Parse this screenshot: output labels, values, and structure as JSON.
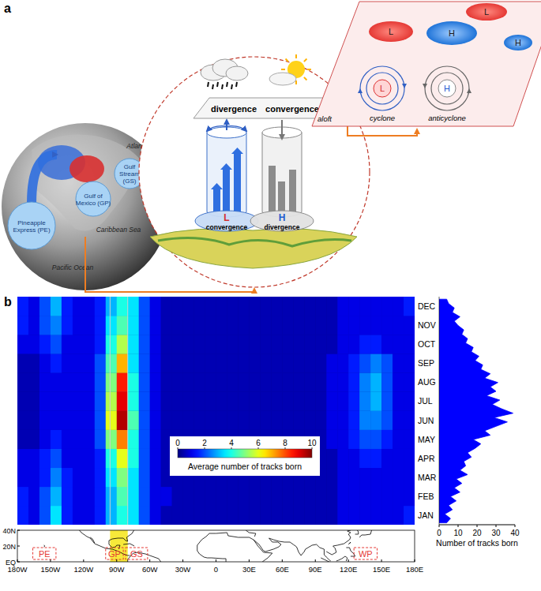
{
  "panel_labels": [
    "a",
    "b"
  ],
  "diagram": {
    "globe": {
      "bubbles": [
        {
          "lines": [
            "Pineapple",
            "Express (PE)"
          ]
        },
        {
          "lines": [
            "Gulf of",
            "Mexico (GP)"
          ]
        },
        {
          "lines": [
            "Gulf",
            "Stream",
            "(GS)"
          ]
        }
      ],
      "oceans": [
        "Atlantic Ocean",
        "Pacific Ocean",
        "Caribbean Sea"
      ]
    },
    "column": {
      "upper": [
        "divergence",
        "convergence"
      ],
      "surface": [
        {
          "symbol": "L",
          "text": "convergence"
        },
        {
          "symbol": "H",
          "text": "divergence"
        }
      ]
    },
    "aloft": {
      "label": "aloft",
      "pressure_cells": [
        "L",
        "H",
        "L",
        "H"
      ],
      "systems": [
        {
          "symbol": "L",
          "text": "cyclone"
        },
        {
          "symbol": "H",
          "text": "anticyclone"
        }
      ]
    }
  },
  "chart_data": [
    {
      "type": "heatmap",
      "tick_labels": "y",
      "categories": [
        "JAN",
        "FEB",
        "MAR",
        "APR",
        "MAY",
        "JUN",
        "JUL",
        "AUG",
        "SEP",
        "OCT",
        "NOV",
        "DEC"
      ],
      "x_bins": [
        -180,
        -170,
        -160,
        -150,
        -140,
        -130,
        -120,
        -110,
        -100,
        -90,
        -80,
        -70,
        -60,
        -50,
        -40,
        -30,
        -20,
        -10,
        0,
        10,
        20,
        30,
        40,
        50,
        60,
        70,
        80,
        90,
        100,
        110,
        120,
        130,
        140,
        150,
        160,
        170,
        180
      ],
      "xlim": [
        -180,
        180
      ],
      "cells": [
        [
          1.5,
          1,
          2,
          3.5,
          1.5,
          1,
          1,
          1.5,
          3,
          4,
          3.5,
          2,
          1,
          0.5,
          0.5,
          0.5,
          0.5,
          0.5,
          0.5,
          0.5,
          0.5,
          0.5,
          0.5,
          0.5,
          0.5,
          0.5,
          0.5,
          0.5,
          0.5,
          1,
          1,
          1,
          1,
          1,
          1,
          1.5
        ],
        [
          1.5,
          1,
          2,
          3,
          1.5,
          1,
          1,
          1.5,
          3,
          4.5,
          3.5,
          2,
          1,
          1,
          0.5,
          0.5,
          0.5,
          0.5,
          0.5,
          0.5,
          0.5,
          0.5,
          0.5,
          0.5,
          0.5,
          0.5,
          0.5,
          0.5,
          0.5,
          1,
          1,
          1,
          1,
          1,
          1,
          1
        ],
        [
          1,
          1,
          1.5,
          2.5,
          1.5,
          1,
          1,
          1.5,
          3.5,
          5,
          3.5,
          2,
          1,
          0.5,
          0.5,
          0.5,
          0.5,
          0.5,
          0.5,
          0.5,
          0.5,
          0.5,
          0.5,
          0.5,
          0.5,
          0.5,
          0.5,
          0.5,
          0.5,
          1,
          1,
          1,
          1,
          1,
          1,
          1
        ],
        [
          1,
          1,
          1.5,
          2,
          1,
          1,
          1,
          1.5,
          4,
          6,
          4,
          2,
          1,
          0.5,
          0.5,
          0.5,
          0.5,
          0.5,
          0.5,
          0.5,
          0.5,
          0.5,
          0.5,
          0.5,
          0.5,
          0.5,
          0.5,
          0.5,
          0.5,
          1,
          1,
          1.5,
          1.5,
          1,
          1,
          1
        ],
        [
          0.5,
          0.5,
          1,
          1.5,
          1,
          1,
          1,
          2,
          5,
          7.5,
          4,
          2,
          1,
          0.5,
          0.5,
          0.5,
          0.5,
          0.5,
          0.5,
          0.5,
          0.5,
          0.5,
          0.5,
          0.5,
          0.5,
          0.5,
          0.5,
          0.5,
          1,
          1,
          1.5,
          2,
          2,
          1.5,
          1,
          1
        ],
        [
          0.5,
          0.5,
          1,
          1,
          1,
          1,
          1,
          2,
          6,
          9.5,
          4.5,
          2,
          1,
          0.5,
          0.5,
          0.5,
          0.5,
          0.5,
          0.5,
          0.5,
          0.5,
          0.5,
          0.5,
          0.5,
          0.5,
          0.5,
          0.5,
          0.5,
          1,
          1,
          1.5,
          2.5,
          2.5,
          2,
          1,
          1
        ],
        [
          0.5,
          0.5,
          1,
          1,
          1,
          1,
          1,
          2,
          5.5,
          9,
          4,
          2,
          1,
          0.5,
          0.5,
          0.5,
          0.5,
          0.5,
          0.5,
          0.5,
          0.5,
          0.5,
          0.5,
          0.5,
          0.5,
          0.5,
          0.5,
          0.5,
          1,
          1,
          1.5,
          2.5,
          3,
          2,
          1,
          1
        ],
        [
          0.5,
          0.5,
          1,
          1,
          1,
          1,
          1,
          2,
          5,
          8.5,
          4,
          2,
          1,
          0.5,
          0.5,
          0.5,
          0.5,
          0.5,
          0.5,
          0.5,
          0.5,
          0.5,
          0.5,
          0.5,
          0.5,
          0.5,
          0.5,
          0.5,
          1,
          1,
          1.5,
          2.5,
          3,
          2,
          1,
          1
        ],
        [
          0.5,
          0.5,
          1,
          1.5,
          1,
          1,
          1,
          2,
          4.5,
          7,
          3.5,
          2,
          1,
          0.5,
          0.5,
          0.5,
          0.5,
          0.5,
          0.5,
          0.5,
          0.5,
          0.5,
          0.5,
          0.5,
          0.5,
          0.5,
          0.5,
          0.5,
          1,
          1,
          1.5,
          2,
          2.5,
          2,
          1,
          1
        ],
        [
          1,
          1,
          1.5,
          2,
          1,
          1,
          1,
          1.5,
          4,
          5.5,
          3.5,
          2,
          1,
          0.5,
          0.5,
          0.5,
          0.5,
          0.5,
          0.5,
          0.5,
          0.5,
          0.5,
          0.5,
          0.5,
          0.5,
          0.5,
          0.5,
          0.5,
          0.5,
          1,
          1,
          1.5,
          1.5,
          1,
          1,
          1
        ],
        [
          1.5,
          1,
          2,
          2.5,
          1.5,
          1,
          1,
          1.5,
          3.5,
          4.5,
          3.5,
          2,
          1,
          0.5,
          0.5,
          0.5,
          0.5,
          0.5,
          0.5,
          0.5,
          0.5,
          0.5,
          0.5,
          0.5,
          0.5,
          0.5,
          0.5,
          0.5,
          0.5,
          1,
          1,
          1,
          1,
          1,
          1,
          1
        ],
        [
          1.5,
          1,
          2,
          3,
          1.5,
          1,
          1,
          1.5,
          3,
          4,
          3.5,
          2,
          1,
          0.5,
          0.5,
          0.5,
          0.5,
          0.5,
          0.5,
          0.5,
          0.5,
          0.5,
          0.5,
          0.5,
          0.5,
          0.5,
          0.5,
          0.5,
          0.5,
          1,
          1,
          1,
          1,
          1,
          1,
          1.5
        ]
      ],
      "colorbar": {
        "range": [
          0,
          10
        ],
        "ticks": [
          0,
          2,
          4,
          6,
          8,
          10
        ],
        "label": "Average number of tracks born"
      }
    },
    {
      "type": "area",
      "orientation": "horizontal",
      "color": "#0000ff",
      "x": [
        4,
        11,
        18,
        25,
        32,
        39,
        46,
        53,
        60,
        67,
        74,
        81,
        88,
        95,
        102,
        109,
        116,
        123,
        130,
        137,
        144,
        151,
        158,
        165,
        172,
        179,
        186,
        193,
        200,
        207,
        214,
        221,
        228,
        235,
        242,
        249,
        256,
        263,
        270,
        277,
        284,
        291,
        298,
        305,
        312,
        319,
        326,
        333,
        340,
        347,
        354,
        361
      ],
      "xlim": [
        1,
        365
      ],
      "values": [
        4,
        6,
        3,
        7,
        5,
        9,
        6,
        11,
        8,
        12,
        9,
        15,
        11,
        14,
        13,
        17,
        15,
        19,
        22,
        18,
        27,
        24,
        30,
        36,
        29,
        39,
        33,
        28,
        32,
        25,
        30,
        27,
        31,
        24,
        27,
        22,
        23,
        19,
        21,
        17,
        18,
        14,
        15,
        12,
        13,
        10,
        8,
        11,
        7,
        8,
        5,
        4
      ],
      "ylim": [
        0,
        40
      ],
      "yticks": [
        0,
        10,
        20,
        30,
        40
      ],
      "y_label": "Number of tracks born"
    },
    {
      "type": "map",
      "xlim": [
        -180,
        180
      ],
      "xticks": [
        {
          "value": -180,
          "label": "180W"
        },
        {
          "value": -150,
          "label": "150W"
        },
        {
          "value": -120,
          "label": "120W"
        },
        {
          "value": -90,
          "label": "90W"
        },
        {
          "value": -60,
          "label": "60W"
        },
        {
          "value": -30,
          "label": "30W"
        },
        0,
        {
          "value": 30,
          "label": "30E"
        },
        {
          "value": 60,
          "label": "60E"
        },
        {
          "value": 90,
          "label": "90E"
        },
        {
          "value": 120,
          "label": "120E"
        },
        {
          "value": 150,
          "label": "150E"
        },
        {
          "value": 180,
          "label": "180E"
        }
      ],
      "ylim": [
        0,
        40
      ],
      "yticks": [
        {
          "value": 0,
          "label": "EQ"
        },
        {
          "value": 20,
          "label": "20N"
        },
        {
          "value": 40,
          "label": "40N"
        }
      ],
      "highlight_lon": [
        -96,
        -80
      ],
      "regions": [
        {
          "label": "PE",
          "lon": [
            -166,
            -145
          ],
          "lat": [
            3,
            18
          ]
        },
        {
          "label": "GP",
          "lon": [
            -100,
            -84
          ],
          "lat": [
            3,
            18
          ]
        },
        {
          "label": "GS",
          "lon": [
            -82,
            -62
          ],
          "lat": [
            3,
            18
          ]
        },
        {
          "label": "WP",
          "lon": [
            125,
            146
          ],
          "lat": [
            3,
            18
          ]
        }
      ]
    }
  ]
}
